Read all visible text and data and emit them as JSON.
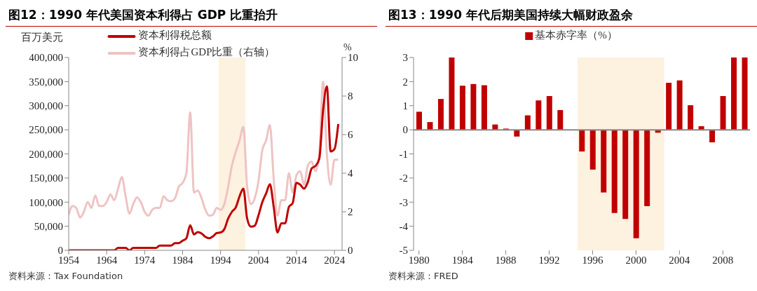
{
  "chart_data": [
    {
      "type": "line",
      "title": "图12：1990 年代美国资本利得占 GDP 比重抬升",
      "ylabel": "百万美元",
      "y2label": "%",
      "legend": "top",
      "grid": false,
      "x": [
        1954,
        1955,
        1956,
        1957,
        1958,
        1959,
        1960,
        1961,
        1962,
        1963,
        1964,
        1965,
        1966,
        1967,
        1968,
        1969,
        1970,
        1971,
        1972,
        1973,
        1974,
        1975,
        1976,
        1977,
        1978,
        1979,
        1980,
        1981,
        1982,
        1983,
        1984,
        1985,
        1986,
        1987,
        1988,
        1989,
        1990,
        1991,
        1992,
        1993,
        1994,
        1995,
        1996,
        1997,
        1998,
        1999,
        2000,
        2001,
        2002,
        2003,
        2004,
        2005,
        2006,
        2007,
        2008,
        2009,
        2010,
        2011,
        2012,
        2013,
        2014,
        2015,
        2016,
        2017,
        2018,
        2019,
        2020,
        2021,
        2022,
        2023,
        2024,
        2025
      ],
      "xlim": [
        1954,
        2026
      ],
      "xticks": [
        1954,
        1964,
        1974,
        1984,
        1994,
        2004,
        2014,
        2024
      ],
      "ylim": [
        0,
        400000
      ],
      "yticks": [
        0,
        {
          "value": 50000,
          "label": "50,000"
        },
        {
          "value": 100000,
          "label": "100,000"
        },
        {
          "value": 150000,
          "label": "150,000"
        },
        {
          "value": 200000,
          "label": "200,000"
        },
        {
          "value": 250000,
          "label": "250,000"
        },
        {
          "value": 300000,
          "label": "300,000"
        },
        {
          "value": 350000,
          "label": "350,000"
        },
        {
          "value": 400000,
          "label": "400,000"
        }
      ],
      "y2lim": [
        0,
        10
      ],
      "y2ticks": [
        0,
        2,
        4,
        6,
        8,
        10
      ],
      "series": [
        {
          "name": "资本利得税总额",
          "color": "#c00000",
          "values": [
            0,
            0,
            0,
            0,
            0,
            0,
            0,
            0,
            0,
            0,
            0,
            0,
            0,
            5000,
            5000,
            5000,
            0,
            5000,
            5000,
            5000,
            5000,
            5000,
            5000,
            5000,
            10000,
            10000,
            10000,
            10000,
            15000,
            15000,
            20000,
            25000,
            52000,
            33000,
            38000,
            35000,
            28000,
            25000,
            29000,
            36000,
            37000,
            44000,
            66000,
            80000,
            89000,
            112000,
            128000,
            66000,
            49000,
            51000,
            73000,
            100000,
            118000,
            137000,
            90000,
            37000,
            56000,
            56000,
            90000,
            98000,
            140000,
            136000,
            128000,
            142000,
            170000,
            175000,
            190000,
            290000,
            340000,
            205000,
            210000,
            262000
          ]
        },
        {
          "name": "资本利得占GDP比重（右轴）",
          "color": "#efc3c3",
          "axis": "y2",
          "values": [
            1.85,
            2.3,
            2.2,
            1.7,
            2.0,
            2.5,
            2.2,
            2.85,
            2.3,
            2.3,
            2.5,
            2.9,
            2.6,
            3.2,
            3.8,
            2.8,
            1.9,
            2.4,
            2.75,
            2.5,
            2.0,
            1.8,
            2.1,
            2.2,
            2.2,
            2.8,
            2.6,
            2.55,
            2.7,
            3.3,
            3.5,
            4.0,
            7.15,
            3.0,
            3.1,
            2.7,
            2.1,
            1.8,
            1.85,
            2.2,
            2.1,
            2.4,
            3.3,
            4.4,
            5.1,
            5.7,
            6.4,
            3.3,
            2.4,
            2.7,
            3.6,
            5.2,
            5.7,
            6.5,
            3.7,
            1.8,
            2.6,
            2.6,
            4.0,
            3.0,
            3.9,
            4.1,
            3.4,
            4.4,
            4.6,
            4.1,
            5.0,
            8.75,
            5.0,
            3.4,
            4.7,
            4.7
          ]
        }
      ],
      "bands": [
        {
          "axis": "x",
          "from": 1993.5,
          "to": 2000.6,
          "color": "#fdf1e0"
        }
      ],
      "annotations": [
        "资料来源：Tax Foundation"
      ]
    },
    {
      "type": "bar",
      "title": "图13：1990 年代后期美国持续大幅财政盈余",
      "legend": "top",
      "grid": false,
      "x": [
        1980,
        1981,
        1982,
        1983,
        1984,
        1985,
        1986,
        1987,
        1988,
        1989,
        1990,
        1991,
        1992,
        1993,
        1994,
        1995,
        1996,
        1997,
        1998,
        1999,
        2000,
        2001,
        2002,
        2003,
        2004,
        2005,
        2006,
        2007,
        2008,
        2009,
        2010
      ],
      "xlim": [
        1979.5,
        2010.5
      ],
      "xticks": [
        1980,
        1984,
        1988,
        1992,
        1996,
        2000,
        2004,
        2008
      ],
      "ylim": [
        -5,
        3
      ],
      "yticks": [
        -5,
        -4,
        -3,
        -2,
        -1,
        0,
        1,
        2,
        3
      ],
      "series": [
        {
          "name": "基本赤字率（%）",
          "color": "#c00000",
          "values": [
            0.75,
            0.32,
            1.28,
            3,
            1.83,
            1.9,
            1.85,
            0.22,
            0.05,
            -0.28,
            0.6,
            1.22,
            1.4,
            0.82,
            0,
            -0.9,
            -1.65,
            -2.6,
            -3.45,
            -3.7,
            -4.5,
            -3.17,
            -0.12,
            1.95,
            2.05,
            1.02,
            0.15,
            -0.52,
            1.4,
            3,
            3
          ]
        }
      ],
      "bands": [
        {
          "axis": "x",
          "from": 1994.6,
          "to": 2002.6,
          "color": "#fdf1e0"
        }
      ],
      "ref_lines": [
        {
          "axis": "y",
          "value": 0,
          "color": "#888888"
        }
      ],
      "annotations": [
        "资料来源：FRED"
      ]
    }
  ]
}
